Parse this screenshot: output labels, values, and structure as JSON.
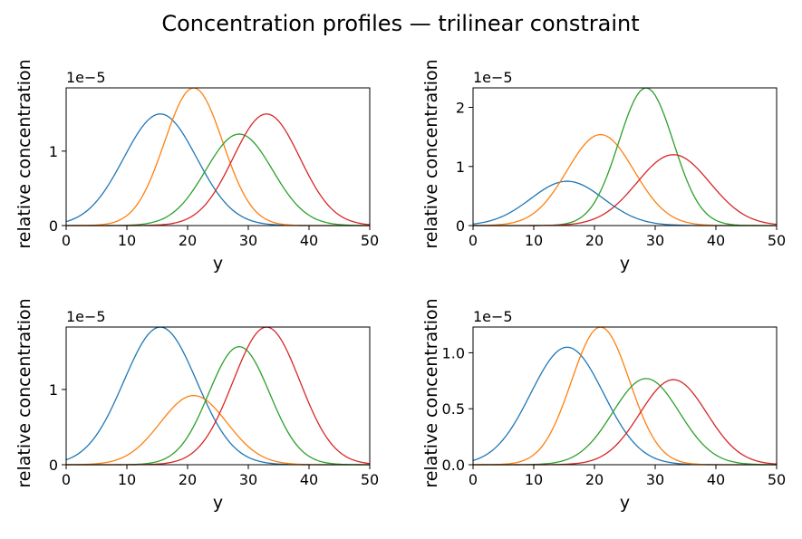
{
  "title": "Concentration profiles — trilinear constraint",
  "colors": [
    "#1f77b4",
    "#ff7f0e",
    "#2ca02c",
    "#d62728"
  ],
  "chart_data": [
    {
      "type": "line",
      "xlabel": "y",
      "ylabel": "relative concentration",
      "offset_text": "1e−5",
      "xlim": [
        0,
        50
      ],
      "ylim": [
        0,
        1.85
      ],
      "xticks": [
        0,
        10,
        20,
        30,
        40,
        50
      ],
      "xtick_labels": [
        "0",
        "10",
        "20",
        "30",
        "40",
        "50"
      ],
      "yticks": [
        0,
        1
      ],
      "ytick_labels": [
        "0",
        "1"
      ],
      "series": [
        {
          "mu": 15.5,
          "sigma": 6.0,
          "amp": 1.5
        },
        {
          "mu": 21.0,
          "sigma": 4.8,
          "amp": 1.85
        },
        {
          "mu": 28.5,
          "sigma": 5.5,
          "amp": 1.23
        },
        {
          "mu": 33.0,
          "sigma": 5.5,
          "amp": 1.5
        }
      ]
    },
    {
      "type": "line",
      "xlabel": "y",
      "ylabel": "relative concentration",
      "offset_text": "1e−5",
      "xlim": [
        0,
        50
      ],
      "ylim": [
        0,
        2.33
      ],
      "xticks": [
        0,
        10,
        20,
        30,
        40,
        50
      ],
      "xtick_labels": [
        "0",
        "10",
        "20",
        "30",
        "40",
        "50"
      ],
      "yticks": [
        0,
        1,
        2
      ],
      "ytick_labels": [
        "0",
        "1",
        "2"
      ],
      "series": [
        {
          "mu": 15.5,
          "sigma": 6.0,
          "amp": 0.75
        },
        {
          "mu": 21.0,
          "sigma": 5.5,
          "amp": 1.54
        },
        {
          "mu": 28.5,
          "sigma": 4.5,
          "amp": 2.33
        },
        {
          "mu": 33.0,
          "sigma": 6.0,
          "amp": 1.2
        }
      ]
    },
    {
      "type": "line",
      "xlabel": "y",
      "ylabel": "relative concentration",
      "offset_text": "1e−5",
      "xlim": [
        0,
        50
      ],
      "ylim": [
        0,
        1.83
      ],
      "xticks": [
        0,
        10,
        20,
        30,
        40,
        50
      ],
      "xtick_labels": [
        "0",
        "10",
        "20",
        "30",
        "40",
        "50"
      ],
      "yticks": [
        0,
        1
      ],
      "ytick_labels": [
        "0",
        "1"
      ],
      "series": [
        {
          "mu": 15.5,
          "sigma": 6.0,
          "amp": 1.83
        },
        {
          "mu": 21.0,
          "sigma": 5.5,
          "amp": 0.92
        },
        {
          "mu": 28.5,
          "sigma": 5.0,
          "amp": 1.57
        },
        {
          "mu": 33.0,
          "sigma": 5.5,
          "amp": 1.83
        }
      ]
    },
    {
      "type": "line",
      "xlabel": "y",
      "ylabel": "relative concentration",
      "offset_text": "1e−5",
      "xlim": [
        0,
        50
      ],
      "ylim": [
        0,
        1.23
      ],
      "xticks": [
        0,
        10,
        20,
        30,
        40,
        50
      ],
      "xtick_labels": [
        "0",
        "10",
        "20",
        "30",
        "40",
        "50"
      ],
      "yticks": [
        0,
        0.5,
        1.0
      ],
      "ytick_labels": [
        "0.0",
        "0.5",
        "1.0"
      ],
      "series": [
        {
          "mu": 15.5,
          "sigma": 6.0,
          "amp": 1.05
        },
        {
          "mu": 21.0,
          "sigma": 4.8,
          "amp": 1.23
        },
        {
          "mu": 28.5,
          "sigma": 5.5,
          "amp": 0.77
        },
        {
          "mu": 33.0,
          "sigma": 5.5,
          "amp": 0.76
        }
      ]
    }
  ]
}
